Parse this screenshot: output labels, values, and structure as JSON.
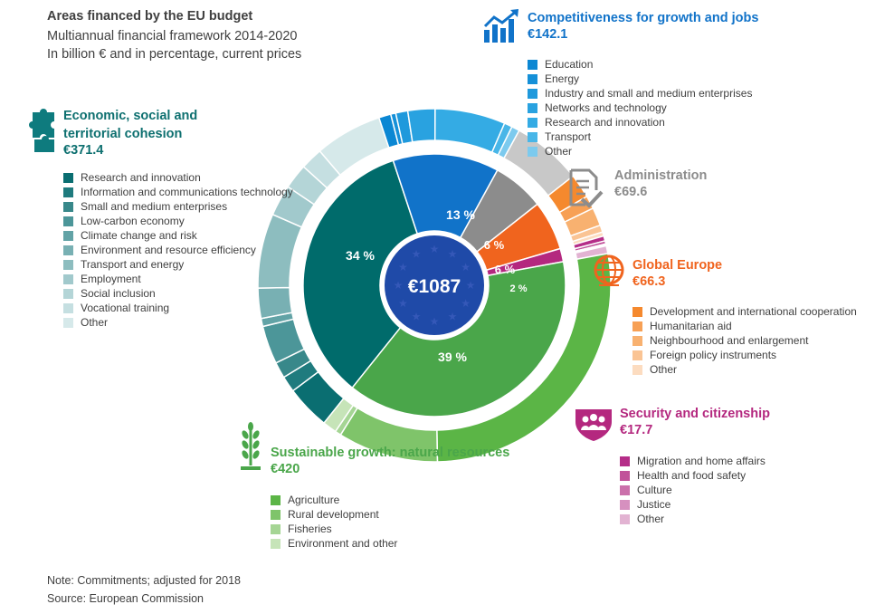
{
  "title": "Areas financed by the EU budget",
  "subtitle_1": "Multiannual financial framework 2014-2020",
  "subtitle_2": "In billion € and in percentage, current prices",
  "note": "Note: Commitments; adjusted for 2018",
  "source": "Source: European Commission",
  "chart_data": {
    "type": "pie",
    "center_label": "€1087",
    "total": 1087,
    "categories": [
      {
        "key": "cohesion",
        "name": "Economic, social and territorial cohesion",
        "name_lines": [
          "Economic, social and",
          "territorial cohesion"
        ],
        "amount_label": "€371.4",
        "value": 371.4,
        "percent_label": "34 %",
        "color": "#006b6b",
        "icon": "puzzle-icon",
        "legend": [
          {
            "label": "Research  and innovation",
            "color": "#0a6e71"
          },
          {
            "label": "Information and communications technology",
            "color": "#1f7b7e"
          },
          {
            "label": "Small and medium enterprises",
            "color": "#38888a"
          },
          {
            "label": "Low-carbon economy",
            "color": "#4c9699"
          },
          {
            "label": "Climate change and risk",
            "color": "#62a3a6"
          },
          {
            "label": "Environment and resource efficiency",
            "color": "#78b0b3"
          },
          {
            "label": "Transport and energy",
            "color": "#8dbdbf"
          },
          {
            "label": "Employment",
            "color": "#a1c9cc"
          },
          {
            "label": "Social inclusion",
            "color": "#b4d5d7"
          },
          {
            "label": "Vocational training",
            "color": "#c5dfe1"
          },
          {
            "label": "Other",
            "color": "#d6e9ea"
          }
        ]
      },
      {
        "key": "competitiveness",
        "name": "Competitiveness for growth and jobs",
        "name_lines": [
          "Competitiveness for growth and jobs"
        ],
        "amount_label": "€142.1",
        "value": 142.1,
        "percent_label": "13 %",
        "color": "#1173c9",
        "icon": "growth-chart-icon",
        "legend": [
          {
            "label": "Education",
            "color": "#0b87d3"
          },
          {
            "label": "Energy",
            "color": "#1590d8"
          },
          {
            "label": "Industry and small and medium enterprises",
            "color": "#1f99dc"
          },
          {
            "label": "Networks and technology",
            "color": "#29a2e0"
          },
          {
            "label": "Research and innovation",
            "color": "#34abe4"
          },
          {
            "label": "Transport",
            "color": "#48b6e8"
          },
          {
            "label": "Other",
            "color": "#7ccaee"
          }
        ]
      },
      {
        "key": "administration",
        "name": "Administration",
        "name_lines": [
          "Administration"
        ],
        "amount_label": "€69.6",
        "value": 69.6,
        "percent_label": "6 %",
        "color": "#8c8c8c",
        "icon": "document-check-icon",
        "legend": []
      },
      {
        "key": "global",
        "name": "Global Europe",
        "name_lines": [
          "Global Europe"
        ],
        "amount_label": "€66.3",
        "value": 66.3,
        "percent_label": "6 %",
        "color": "#f0641e",
        "icon": "globe-icon",
        "legend": [
          {
            "label": "Development and international cooperation",
            "color": "#f5892e"
          },
          {
            "label": "Humanitarian aid",
            "color": "#f7a055"
          },
          {
            "label": "Neighbourhood and enlargement",
            "color": "#f8b170"
          },
          {
            "label": "Foreign policy instruments",
            "color": "#fac494"
          },
          {
            "label": "Other",
            "color": "#fcdcc0"
          }
        ]
      },
      {
        "key": "security",
        "name": "Security and citizenship",
        "name_lines": [
          "Security and citizenship"
        ],
        "amount_label": "€17.7",
        "value": 17.7,
        "percent_label": "2 %",
        "color": "#b4287f",
        "icon": "people-shield-icon",
        "legend": [
          {
            "label": "Migration and home affairs",
            "color": "#b52d88"
          },
          {
            "label": "Health and food safety",
            "color": "#c1529a"
          },
          {
            "label": "Culture",
            "color": "#cb70ab"
          },
          {
            "label": "Justice",
            "color": "#d690bf"
          },
          {
            "label": "Other",
            "color": "#e2b3d2"
          }
        ]
      },
      {
        "key": "sustainable",
        "name": "Sustainable growth: natural resources",
        "name_lines": [
          "Sustainable growth: natural resources"
        ],
        "amount_label": "€420",
        "value": 420,
        "percent_label": "39 %",
        "color": "#4aa64a",
        "icon": "wheat-icon",
        "legend": [
          {
            "label": "Agriculture",
            "color": "#5bb546"
          },
          {
            "label": "Rural development",
            "color": "#7fc46a"
          },
          {
            "label": "Fisheries",
            "color": "#a5d594"
          },
          {
            "label": "Environment and other",
            "color": "#c6e4b8"
          }
        ]
      }
    ],
    "outer_ring_values": {
      "cohesion": [
        44,
        16,
        16,
        38,
        8,
        30,
        74,
        31,
        25,
        22,
        67
      ],
      "competitiveness": [
        12,
        5,
        12,
        27,
        70,
        8,
        8
      ],
      "administration": [
        69.6
      ],
      "global": [
        24,
        13,
        18,
        7,
        4
      ],
      "security": [
        5,
        3,
        1,
        1,
        7.7
      ],
      "sustainable": [
        300,
        100,
        6,
        14
      ]
    }
  }
}
